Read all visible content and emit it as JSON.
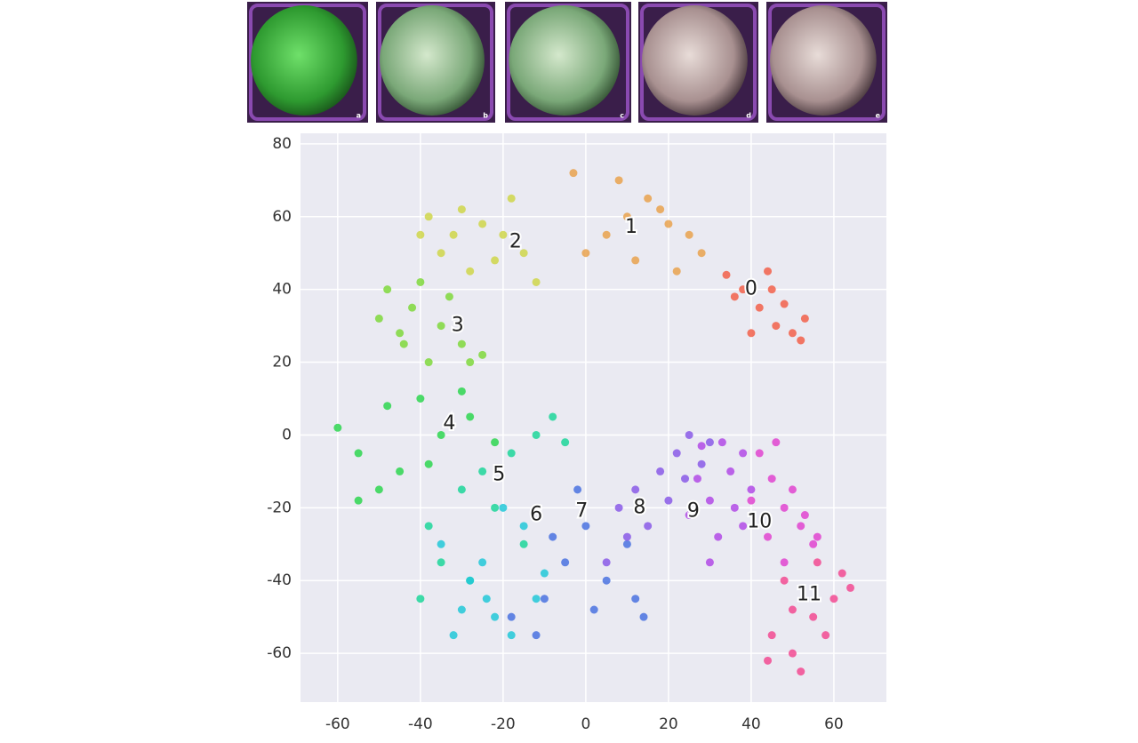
{
  "thumbnail_labels": [
    "a",
    "b",
    "c",
    "d",
    "e"
  ],
  "chart_data": {
    "type": "scatter",
    "xlim": [
      -69,
      72.7
    ],
    "ylim": [
      -73.4,
      82.9
    ],
    "xticks": [
      -60,
      -40,
      -20,
      0,
      20,
      40,
      60
    ],
    "yticks": [
      -60,
      -40,
      -20,
      0,
      20,
      40,
      60,
      80
    ],
    "grid": true,
    "series": [
      {
        "name": "0",
        "color": "#f2604a",
        "label": {
          "x": 40,
          "y": 40
        },
        "x": [
          38,
          42,
          46,
          50,
          53,
          44,
          36,
          48,
          52,
          40,
          45,
          34
        ],
        "values": [
          40,
          35,
          30,
          28,
          32,
          45,
          38,
          36,
          26,
          28,
          40,
          44
        ]
      },
      {
        "name": "1",
        "color": "#e9a24e",
        "label": {
          "x": 11,
          "y": 57
        },
        "x": [
          5,
          10,
          15,
          20,
          25,
          0,
          12,
          28,
          8,
          18,
          -3,
          22
        ],
        "values": [
          55,
          60,
          65,
          58,
          55,
          50,
          48,
          50,
          70,
          62,
          72,
          45
        ]
      },
      {
        "name": "2",
        "color": "#cfd64a",
        "label": {
          "x": -17,
          "y": 53
        },
        "x": [
          -38,
          -30,
          -25,
          -20,
          -15,
          -35,
          -28,
          -18,
          -12,
          -32,
          -22,
          -40
        ],
        "values": [
          60,
          62,
          58,
          55,
          50,
          50,
          45,
          65,
          42,
          55,
          48,
          55
        ]
      },
      {
        "name": "3",
        "color": "#7fd83c",
        "label": {
          "x": -31,
          "y": 30
        },
        "x": [
          -48,
          -42,
          -35,
          -30,
          -45,
          -38,
          -28,
          -40,
          -50,
          -33,
          -25,
          -44
        ],
        "values": [
          40,
          35,
          30,
          25,
          28,
          20,
          20,
          42,
          32,
          38,
          22,
          25
        ]
      },
      {
        "name": "4",
        "color": "#2ed650",
        "label": {
          "x": -33,
          "y": 3
        },
        "x": [
          -60,
          -55,
          -48,
          -40,
          -35,
          -28,
          -22,
          -45,
          -50,
          -30,
          -38,
          -55
        ],
        "values": [
          2,
          -5,
          8,
          10,
          0,
          5,
          -2,
          -10,
          -15,
          12,
          -8,
          -18
        ]
      },
      {
        "name": "5",
        "color": "#1dd69a",
        "label": {
          "x": -21,
          "y": -11
        },
        "x": [
          -38,
          -30,
          -25,
          -18,
          -12,
          -8,
          -35,
          -22,
          -15,
          -28,
          -40,
          -5
        ],
        "values": [
          -25,
          -15,
          -10,
          -5,
          0,
          5,
          -35,
          -20,
          -30,
          -40,
          -45,
          -2
        ]
      },
      {
        "name": "6",
        "color": "#22c8d8",
        "label": {
          "x": -12,
          "y": -22
        },
        "x": [
          -35,
          -28,
          -22,
          -18,
          -12,
          -25,
          -30,
          -15,
          -20,
          -10,
          -32,
          -24
        ],
        "values": [
          -30,
          -40,
          -50,
          -55,
          -45,
          -35,
          -48,
          -25,
          -20,
          -38,
          -55,
          -45
        ]
      },
      {
        "name": "7",
        "color": "#4a72e0",
        "label": {
          "x": -1,
          "y": -21
        },
        "x": [
          -18,
          -10,
          -5,
          0,
          5,
          10,
          -12,
          2,
          12,
          -2,
          -8,
          14
        ],
        "values": [
          -50,
          -45,
          -35,
          -25,
          -40,
          -30,
          -55,
          -48,
          -45,
          -15,
          -28,
          -50
        ]
      },
      {
        "name": "8",
        "color": "#8a5ae8",
        "label": {
          "x": 13,
          "y": -20
        },
        "x": [
          8,
          12,
          18,
          22,
          25,
          15,
          28,
          20,
          10,
          30,
          5,
          24
        ],
        "values": [
          -20,
          -15,
          -10,
          -5,
          0,
          -25,
          -8,
          -18,
          -28,
          -2,
          -35,
          -12
        ]
      },
      {
        "name": "9",
        "color": "#b24ae6",
        "label": {
          "x": 26,
          "y": -21
        },
        "x": [
          25,
          30,
          35,
          38,
          32,
          28,
          36,
          40,
          33,
          27,
          38,
          30
        ],
        "values": [
          -22,
          -18,
          -10,
          -5,
          -28,
          -3,
          -20,
          -15,
          -2,
          -12,
          -25,
          -35
        ]
      },
      {
        "name": "10",
        "color": "#e044d0",
        "label": {
          "x": 42,
          "y": -24
        },
        "x": [
          42,
          45,
          48,
          52,
          55,
          44,
          50,
          46,
          40,
          53,
          48,
          56
        ],
        "values": [
          -5,
          -12,
          -20,
          -25,
          -30,
          -28,
          -15,
          -2,
          -18,
          -22,
          -35,
          -28
        ]
      },
      {
        "name": "11",
        "color": "#f24a92",
        "label": {
          "x": 54,
          "y": -44
        },
        "x": [
          45,
          50,
          55,
          60,
          62,
          48,
          52,
          58,
          44,
          56,
          50,
          64
        ],
        "values": [
          -55,
          -60,
          -50,
          -45,
          -38,
          -40,
          -65,
          -55,
          -62,
          -35,
          -48,
          -42
        ]
      }
    ]
  }
}
